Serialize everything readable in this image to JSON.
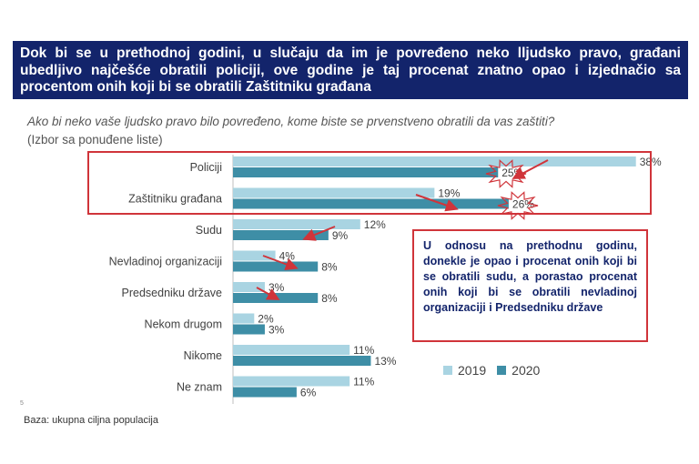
{
  "header": {
    "title": "Dok bi se u prethodnoj godini, u slučaju da im je povređeno neko lljudsko pravo, građani ubedljivo najčešće obratili policiji, ove godine je taj procenat znatno opao i izjednačio sa procentom onih koji bi se obratili Zaštitniku građana"
  },
  "question": "Ako bi neko vaše ljudsko pravo bilo povređeno, kome biste se prvenstveno obratili da vas zaštiti?",
  "question_note": "(Izbor sa ponuđene liste)",
  "callout": "U odnosu na prethodnu godinu, donekle je opao i procenat onih koji bi se obratili sudu, a porastao procenat onih koji bi se obratili nevladinoj organizaciji i Predsedniku države",
  "footer": {
    "base_note": "Baza: ukupna ciljna populacija",
    "page_number": "5"
  },
  "colors": {
    "series_2019": "#a9d4e2",
    "series_2020": "#3e8ea6",
    "highlight": "#d0343a",
    "title_bg": "#13246b"
  },
  "chart_data": {
    "type": "bar",
    "orientation": "horizontal",
    "categories": [
      "Policiji",
      "Zaštitniku građana",
      "Sudu",
      "Nevladinoj organizaciji",
      "Predsedniku države",
      "Nekom drugom",
      "Nikome",
      "Ne znam"
    ],
    "series": [
      {
        "name": "2019",
        "values": [
          38,
          19,
          12,
          4,
          3,
          2,
          11,
          11
        ]
      },
      {
        "name": "2020",
        "values": [
          25,
          26,
          9,
          8,
          8,
          3,
          13,
          6
        ]
      }
    ],
    "value_suffix": "%",
    "legend_position": "bottom-right",
    "grid": false
  }
}
